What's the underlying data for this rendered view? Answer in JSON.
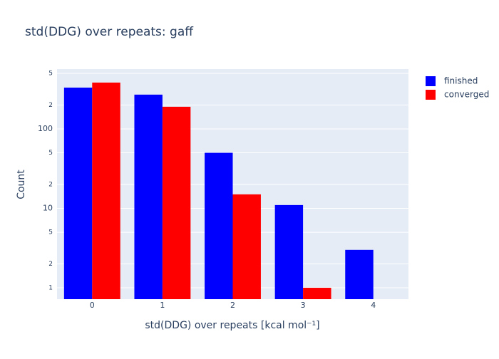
{
  "chart_data": {
    "type": "bar",
    "title": "std(DDG) over repeats: gaff",
    "x_label": "std(DDG) over repeats [kcal mol⁻¹]",
    "y_label": "Count",
    "x": [
      0,
      1,
      2,
      3,
      4
    ],
    "series": [
      {
        "name": "finished",
        "color": "#0000ff",
        "values": [
          331,
          270,
          50,
          11,
          3
        ]
      },
      {
        "name": "converged",
        "color": "#ff0000",
        "values": [
          383,
          190,
          15,
          1,
          null
        ]
      }
    ],
    "xlim": [
      -0.5,
      4.5
    ],
    "xticks": [
      0,
      1,
      2,
      3,
      4
    ],
    "ylim": [
      0.719,
      566
    ],
    "log_y": true,
    "yticks": [
      1,
      2,
      5,
      10,
      {
        "value": 20,
        "label": "2"
      },
      {
        "value": 50,
        "label": "5"
      },
      100,
      {
        "value": 200,
        "label": "2"
      },
      {
        "value": 500,
        "label": "5"
      }
    ],
    "grid": true,
    "legend": "top-right-outside"
  }
}
